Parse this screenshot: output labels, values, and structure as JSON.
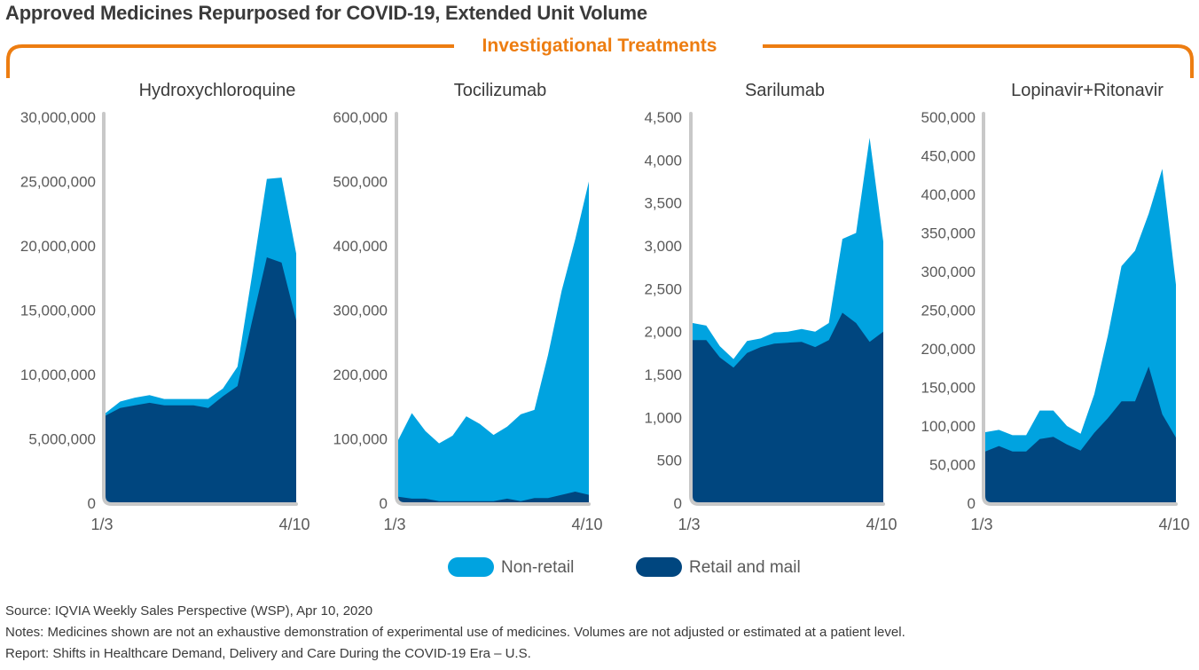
{
  "title": "Approved Medicines Repurposed for COVID-19, Extended Unit Volume",
  "bracket_label": "Investigational Treatments",
  "colors": {
    "non_retail": "#00a3e0",
    "retail": "#00467f",
    "axis": "#c8c8c8",
    "bracket": "#ed7d11",
    "tick_text": "#5a5a5a"
  },
  "legend": {
    "non_retail": "Non-retail",
    "retail": "Retail and mail"
  },
  "footnotes": {
    "source": "Source: IQVIA Weekly Sales Perspective (WSP), Apr 10, 2020",
    "notes": "Notes: Medicines shown are not an exhaustive demonstration of experimental use of medicines. Volumes are not adjusted or estimated at a patient level.",
    "report": "Report: Shifts in Healthcare Demand, Delivery and Care During the COVID-19 Era – U.S."
  },
  "chart_data": [
    {
      "type": "area",
      "title": "Hydroxychloroquine",
      "x_start_label": "1/3",
      "x_end_label": "4/10",
      "ylim": [
        0,
        30000000
      ],
      "y_ticks": [
        0,
        5000000,
        10000000,
        15000000,
        20000000,
        25000000,
        30000000
      ],
      "y_tick_labels": [
        "0",
        "5,000,000",
        "10,000,000",
        "15,000,000",
        "20,000,000",
        "25,000,000",
        "30,000,000"
      ],
      "series": [
        {
          "name": "Retail and mail",
          "values": [
            6800000,
            7400000,
            7600000,
            7800000,
            7600000,
            7600000,
            7600000,
            7400000,
            8300000,
            9100000,
            14200000,
            19100000,
            18700000,
            14200000
          ]
        },
        {
          "name": "Non-retail",
          "values": [
            200000,
            500000,
            600000,
            600000,
            500000,
            500000,
            500000,
            700000,
            600000,
            1500000,
            3600000,
            6100000,
            6600000,
            5200000
          ]
        }
      ]
    },
    {
      "type": "area",
      "title": "Tocilizumab",
      "x_start_label": "1/3",
      "x_end_label": "4/10",
      "ylim": [
        0,
        600000
      ],
      "y_ticks": [
        0,
        100000,
        200000,
        300000,
        400000,
        500000,
        600000
      ],
      "y_tick_labels": [
        "0",
        "100,000",
        "200,000",
        "300,000",
        "400,000",
        "500,000",
        "600,000"
      ],
      "series": [
        {
          "name": "Retail and mail",
          "values": [
            10000,
            7000,
            7000,
            3000,
            3000,
            3000,
            3000,
            3000,
            7000,
            3000,
            8000,
            8000,
            13000,
            18000,
            13000
          ]
        },
        {
          "name": "Non-retail",
          "values": [
            88000,
            133000,
            105000,
            90000,
            102000,
            132000,
            120000,
            103000,
            112000,
            135000,
            137000,
            222000,
            317000,
            392000,
            487000
          ]
        }
      ]
    },
    {
      "type": "area",
      "title": "Sarilumab",
      "x_start_label": "1/3",
      "x_end_label": "4/10",
      "ylim": [
        0,
        4500
      ],
      "y_ticks": [
        0,
        500,
        1000,
        1500,
        2000,
        2500,
        3000,
        3500,
        4000,
        4500
      ],
      "y_tick_labels": [
        "0",
        "500",
        "1,000",
        "1,500",
        "2,000",
        "2,500",
        "3,000",
        "3,500",
        "4,000",
        "4,500"
      ],
      "series": [
        {
          "name": "Retail and mail",
          "values": [
            1900,
            1900,
            1700,
            1580,
            1750,
            1820,
            1860,
            1870,
            1880,
            1820,
            1900,
            2220,
            2100,
            1880,
            2000
          ]
        },
        {
          "name": "Non-retail",
          "values": [
            200,
            170,
            130,
            100,
            140,
            100,
            130,
            130,
            150,
            180,
            200,
            860,
            1050,
            2380,
            1050
          ]
        }
      ]
    },
    {
      "type": "area",
      "title": "Lopinavir+Ritonavir",
      "x_start_label": "1/3",
      "x_end_label": "4/10",
      "ylim": [
        0,
        500000
      ],
      "y_ticks": [
        0,
        50000,
        100000,
        150000,
        200000,
        250000,
        300000,
        350000,
        400000,
        450000,
        500000
      ],
      "y_tick_labels": [
        "0",
        "50,000",
        "100,000",
        "150,000",
        "200,000",
        "250,000",
        "300,000",
        "350,000",
        "400,000",
        "450,000",
        "500,000"
      ],
      "series": [
        {
          "name": "Retail and mail",
          "values": [
            67000,
            74000,
            67000,
            67000,
            83000,
            86000,
            76000,
            68000,
            91000,
            110000,
            132000,
            132000,
            177000,
            115000,
            85000
          ]
        },
        {
          "name": "Non-retail",
          "values": [
            25000,
            21000,
            21000,
            21000,
            37000,
            34000,
            24000,
            22000,
            50000,
            107000,
            175000,
            195000,
            198000,
            318000,
            198000
          ]
        }
      ]
    }
  ]
}
